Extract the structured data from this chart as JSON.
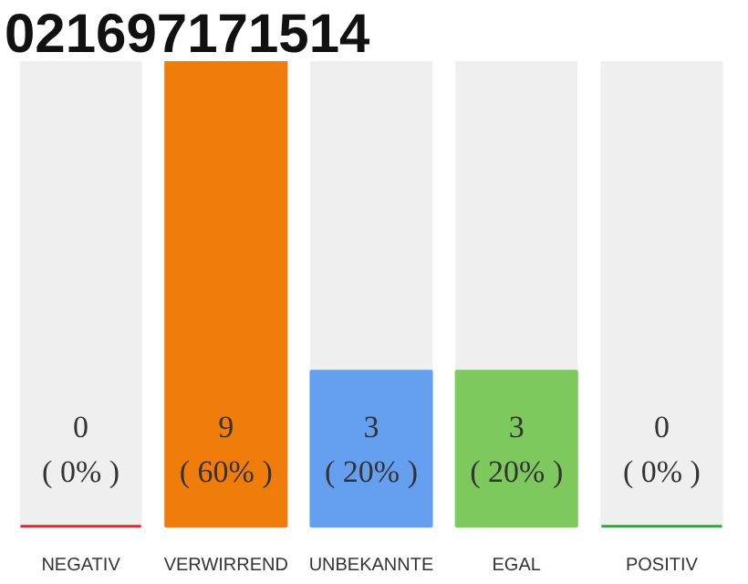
{
  "chart_data": {
    "type": "bar",
    "title": "021697171514",
    "categories": [
      "NEGATIV",
      "VERWIRREND",
      "UNBEKANNTE",
      "EGAL",
      "POSITIV"
    ],
    "values": [
      0,
      9,
      3,
      3,
      0
    ],
    "colors": [
      "#e8213b",
      "#f07c0c",
      "#659ff0",
      "#7dc95e",
      "#27a844"
    ],
    "value_labels": [
      "0\n( 0% )",
      "9\n( 60% )",
      "3\n( 20% )",
      "3\n( 20% )",
      "0\n( 0% )"
    ],
    "grid": false
  }
}
